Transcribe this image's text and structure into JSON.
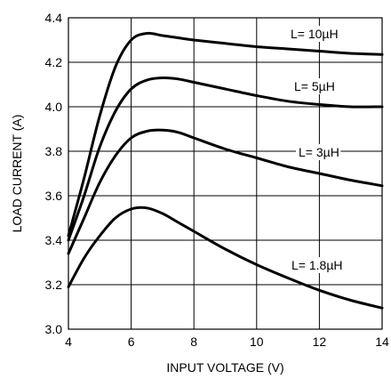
{
  "chart_data": {
    "type": "line",
    "title": "",
    "xlabel": "INPUT VOLTAGE (V)",
    "ylabel": "LOAD CURRENT (A)",
    "xlim": [
      4,
      14
    ],
    "ylim": [
      3.0,
      4.4
    ],
    "xticks": [
      "4",
      "6",
      "8",
      "10",
      "12",
      "14"
    ],
    "yticks": [
      "3.0",
      "3.2",
      "3.4",
      "3.6",
      "3.8",
      "4.0",
      "4.2",
      "4.4"
    ],
    "grid": true,
    "legend": "inline",
    "series": [
      {
        "name": "L= 10µH",
        "x": [
          4,
          4.5,
          5,
          5.5,
          6,
          6.5,
          7,
          7.5,
          8,
          9,
          10,
          11,
          12,
          13,
          14
        ],
        "y": [
          3.42,
          3.68,
          3.96,
          4.18,
          4.3,
          4.33,
          4.32,
          4.31,
          4.3,
          4.285,
          4.27,
          4.26,
          4.25,
          4.24,
          4.235
        ]
      },
      {
        "name": "L= 5µH",
        "x": [
          4,
          4.5,
          5,
          5.5,
          6,
          6.5,
          7,
          7.5,
          8,
          9,
          10,
          11,
          12,
          13,
          14
        ],
        "y": [
          3.4,
          3.6,
          3.82,
          3.98,
          4.08,
          4.12,
          4.13,
          4.125,
          4.11,
          4.08,
          4.05,
          4.025,
          4.01,
          4.0,
          4.0
        ]
      },
      {
        "name": "L= 3µH",
        "x": [
          4,
          4.5,
          5,
          5.5,
          6,
          6.5,
          7,
          7.5,
          8,
          9,
          10,
          11,
          12,
          13,
          14
        ],
        "y": [
          3.34,
          3.5,
          3.66,
          3.78,
          3.86,
          3.89,
          3.895,
          3.885,
          3.86,
          3.81,
          3.77,
          3.73,
          3.7,
          3.67,
          3.645
        ]
      },
      {
        "name": "L= 1.8µH",
        "x": [
          4,
          4.5,
          5,
          5.5,
          6,
          6.5,
          7,
          7.5,
          8,
          9,
          10,
          11,
          12,
          13,
          14
        ],
        "y": [
          3.19,
          3.32,
          3.42,
          3.5,
          3.54,
          3.545,
          3.52,
          3.48,
          3.44,
          3.36,
          3.29,
          3.23,
          3.175,
          3.13,
          3.095
        ]
      }
    ]
  }
}
